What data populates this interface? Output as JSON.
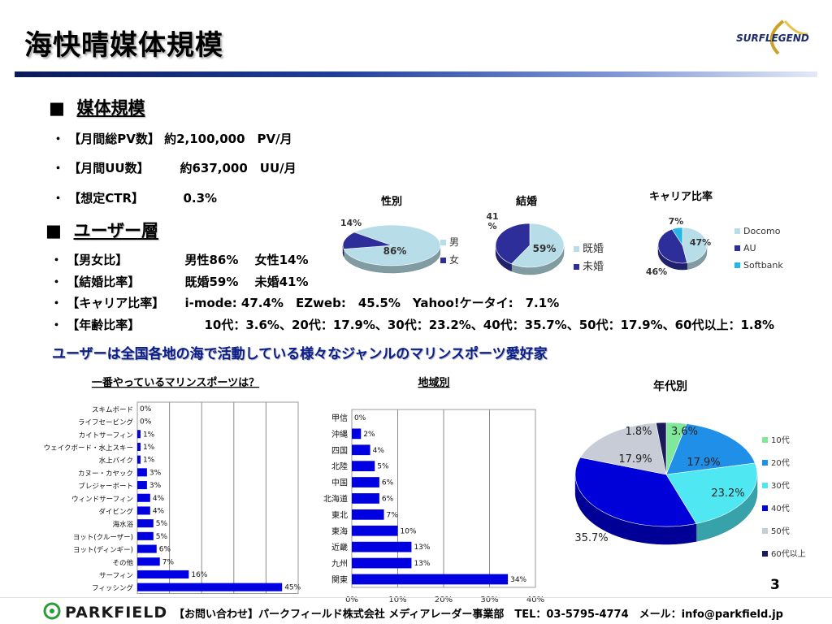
{
  "title": "海快晴媒体規模",
  "logo_top": "SURFLEGEND",
  "section1": {
    "marker": "■",
    "title": "媒体規模"
  },
  "media_items": [
    {
      "bullet": "・",
      "label": "【月間総PV数】",
      "value": "約2,100,000　PV/月"
    },
    {
      "bullet": "・",
      "label": "【月間UU数】",
      "value": "約637,000　UU/月"
    },
    {
      "bullet": "・",
      "label": "【想定CTR】",
      "value": "0.3%"
    }
  ],
  "section2": {
    "marker": "■",
    "title": "ユーザー層"
  },
  "user_items": [
    {
      "bullet": "・",
      "label": "【男女比】",
      "value": "男性86%　 女性14%"
    },
    {
      "bullet": "・",
      "label": "【結婚比率】",
      "value": "既婚59%　 未婚41%"
    },
    {
      "bullet": "・",
      "label": "【キャリア比率】",
      "value": "i-mode: 47.4%　EZweb:　45.5%　Yahoo!ケータイ:　7.1%"
    },
    {
      "bullet": "・",
      "label": "【年齢比率】",
      "value": "10代：3.6%、20代：17.9%、30代：23.2%、40代：35.7%、50代：17.9%、60代以上：1.8%"
    }
  ],
  "catchphrase": "ユーザーは全国各地の海で活動している様々なジャンルのマリンスポーツ愛好家",
  "page_number": "3",
  "footer": {
    "logo": "PARKFIELD",
    "contact": "【お問い合わせ】パークフィールド株式会社 メディアレーダー事業部　TEL：03-5795-4774　メール：info@parkfield.jp"
  },
  "colors": {
    "title_rule": "#1f3f9a",
    "catch": "#0a1d8c",
    "bar": "#0000e0"
  },
  "chart_data": [
    {
      "type": "pie",
      "title": "性別",
      "slices": [
        {
          "label": "男",
          "value": 86,
          "display": "86%",
          "color": "#b7dde8"
        },
        {
          "label": "女",
          "value": 14,
          "display": "14%",
          "color": "#2e2e9a"
        }
      ],
      "legend": "right"
    },
    {
      "type": "pie",
      "title": "結婚",
      "slices": [
        {
          "label": "既婚",
          "value": 59,
          "display": "59%",
          "color": "#b7dde8"
        },
        {
          "label": "未婚",
          "value": 41,
          "display": "41\n%",
          "color": "#2e2e9a"
        }
      ],
      "legend": "right"
    },
    {
      "type": "pie",
      "title": "キャリア比率",
      "slices": [
        {
          "label": "Docomo",
          "value": 47,
          "display": "47%",
          "color": "#b7dde8"
        },
        {
          "label": "AU",
          "value": 46,
          "display": "46%",
          "color": "#2e2e9a"
        },
        {
          "label": "Softbank",
          "value": 7,
          "display": "7%",
          "color": "#27b6e8"
        }
      ],
      "legend": "right"
    },
    {
      "type": "bar",
      "orientation": "horizontal",
      "title": "一番やっているマリンスポーツは？",
      "categories": [
        "スキムボード",
        "ライフセービング",
        "カイトサーフィン",
        "ウェイクボード・水上スキー",
        "水上バイク",
        "カヌー・カヤック",
        "ブレジャーボート",
        "ウィンドサーフィン",
        "ダイビング",
        "海水浴",
        "ヨット(クルーザー)",
        "ヨット(ディンギー)",
        "その他",
        "サーフィン",
        "フィッシング"
      ],
      "values": [
        0,
        0,
        1,
        1,
        1,
        3,
        3,
        4,
        4,
        5,
        5,
        6,
        7,
        16,
        45
      ],
      "value_labels": [
        "0%",
        "0%",
        "1%",
        "1%",
        "1%",
        "3%",
        "3%",
        "4%",
        "4%",
        "5%",
        "5%",
        "6%",
        "7%",
        "16%",
        "45%"
      ],
      "xlim": [
        0,
        50
      ],
      "xticks": [
        "0%",
        "10%",
        "20%",
        "30%",
        "40%",
        "50%"
      ],
      "grid": true
    },
    {
      "type": "bar",
      "orientation": "horizontal",
      "title": "地域別",
      "categories": [
        "甲信",
        "沖縄",
        "四国",
        "北陸",
        "中国",
        "北海道",
        "東北",
        "東海",
        "近畿",
        "九州",
        "関東"
      ],
      "values": [
        0,
        2,
        4,
        5,
        6,
        6,
        7,
        10,
        13,
        13,
        34
      ],
      "value_labels": [
        "0%",
        "2%",
        "4%",
        "5%",
        "6%",
        "6%",
        "7%",
        "10%",
        "13%",
        "13%",
        "34%"
      ],
      "xlim": [
        0,
        40
      ],
      "xticks": [
        "0%",
        "10%",
        "20%",
        "30%",
        "40%"
      ],
      "grid": true
    },
    {
      "type": "pie",
      "title": "年代別",
      "slices": [
        {
          "label": "10代",
          "value": 3.6,
          "display": "3.6%",
          "color": "#7fe89a"
        },
        {
          "label": "20代",
          "value": 17.9,
          "display": "17.9%",
          "color": "#1f8fe8"
        },
        {
          "label": "30代",
          "value": 23.2,
          "display": "23.2%",
          "color": "#4fe8f2"
        },
        {
          "label": "40代",
          "value": 35.7,
          "display": "35.7%",
          "color": "#0000d8"
        },
        {
          "label": "50代",
          "value": 17.9,
          "display": "17.9%",
          "color": "#c8ccd6"
        },
        {
          "label": "60代以上",
          "value": 1.8,
          "display": "1.8%",
          "color": "#1a1a5a"
        }
      ],
      "legend": "right"
    }
  ]
}
